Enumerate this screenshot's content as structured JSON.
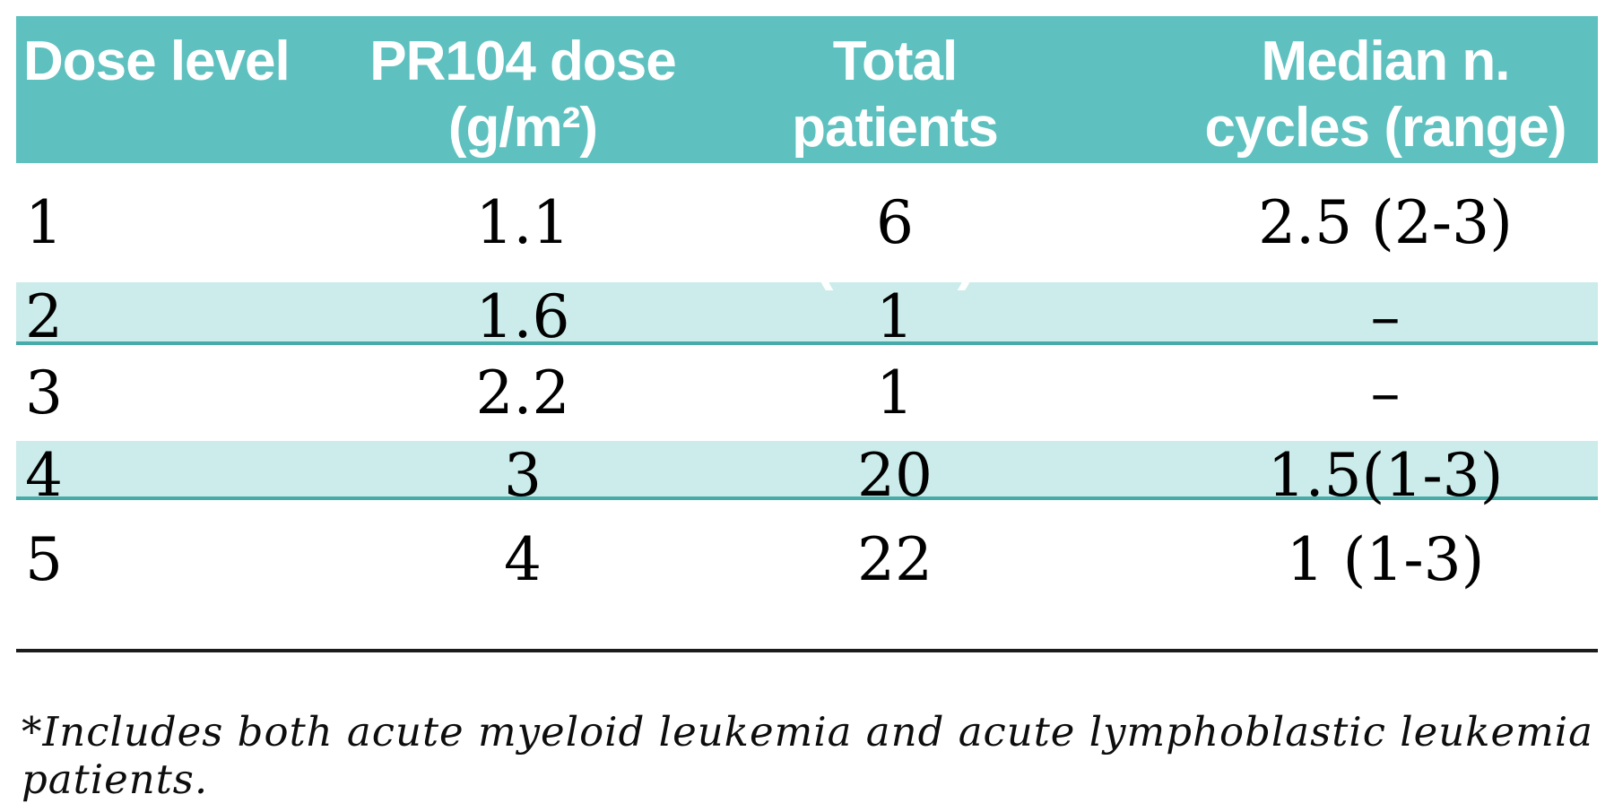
{
  "table": {
    "columns": [
      {
        "line1": "Dose level",
        "line2": ""
      },
      {
        "line1": "PR104 dose",
        "line2": "(g/m²)"
      },
      {
        "line1": "Total patients",
        "line2": "treated* (n=50)"
      },
      {
        "line1": "Median n.",
        "line2": "cycles (range)"
      }
    ],
    "rows": [
      {
        "cells": [
          "1",
          "1.1",
          "6",
          "2.5 (2-3)"
        ]
      },
      {
        "cells": [
          "2",
          "1.6",
          "1",
          "–"
        ]
      },
      {
        "cells": [
          "3",
          "2.2",
          "1",
          "–"
        ]
      },
      {
        "cells": [
          "4",
          "3",
          "20",
          "1.5(1-3)"
        ]
      },
      {
        "cells": [
          "5",
          "4",
          "22",
          "1 (1-3)"
        ]
      }
    ],
    "footnote": "*Includes both acute myeloid leukemia and acute lymphoblastic leukemia patients."
  },
  "colors": {
    "header_background": "#5ec1bf",
    "header_text": "#ffffff",
    "stripe_background": "#cbecea",
    "stripe_border": "#46aba9",
    "body_text": "#000000",
    "bottom_rule": "#1c1c1c"
  }
}
